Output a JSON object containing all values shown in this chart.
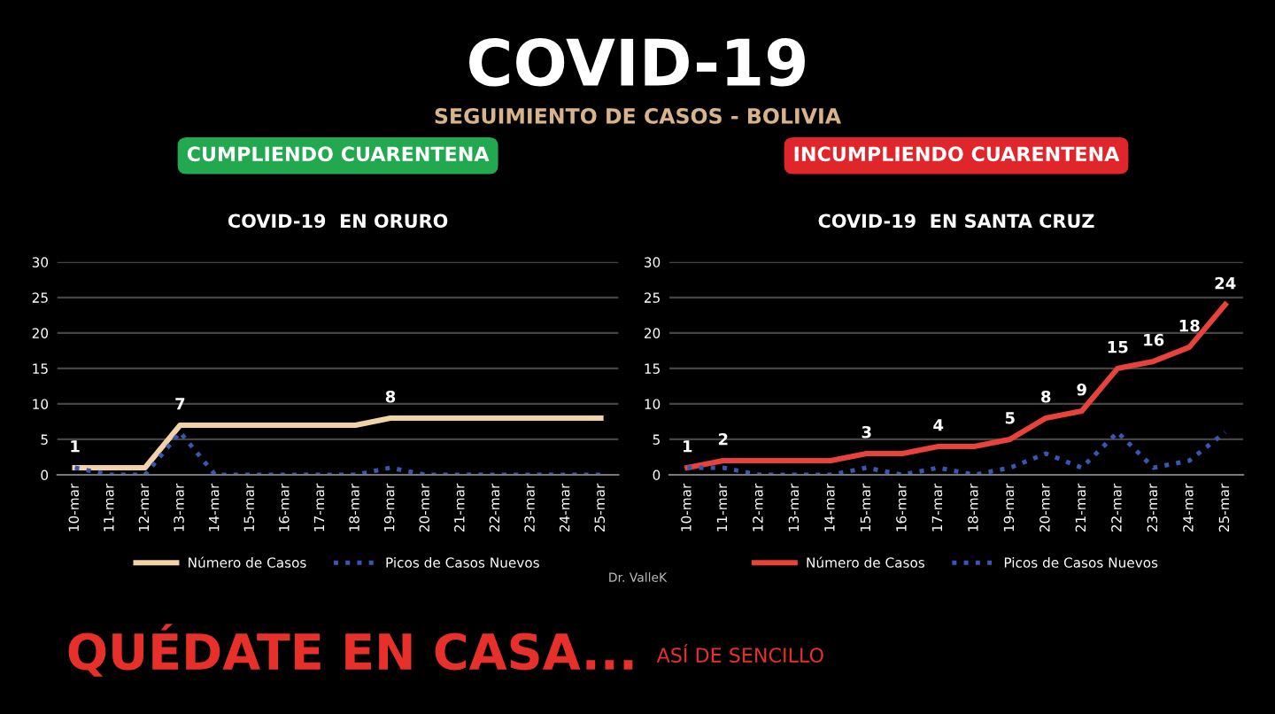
{
  "chart_data": [
    {
      "type": "other",
      "title": "COVID-19",
      "subtitle": "SEGUIMIENTO DE CASOS - BOLIVIA",
      "annotations": [
        "QUÉDATE EN CASA...",
        "ASÍ DE SENCILLO",
        "Dr. ValleK"
      ]
    },
    {
      "type": "line",
      "title": "COVID-19  EN ORURO",
      "annotations": [
        "CUMPLIENDO CUARENTENA"
      ],
      "categories": [
        "10-mar",
        "11-mar",
        "12-mar",
        "13-mar",
        "14-mar",
        "15-mar",
        "16-mar",
        "17-mar",
        "18-mar",
        "19-mar",
        "20-mar",
        "21-mar",
        "22-mar",
        "23-mar",
        "24-mar",
        "25-mar"
      ],
      "series": [
        {
          "name": "Número de Casos",
          "color": "#f2d3a8",
          "line_style": "solid",
          "values": [
            1,
            1,
            1,
            7,
            7,
            7,
            7,
            7,
            7,
            8,
            8,
            8,
            8,
            8,
            8,
            8
          ],
          "value_labels": [
            "1",
            null,
            null,
            "7",
            null,
            null,
            null,
            null,
            null,
            "8",
            null,
            null,
            null,
            null,
            null,
            null
          ]
        },
        {
          "name": "Picos de Casos Nuevos",
          "color": "#3b55b0",
          "line_style": "dotted",
          "values": [
            1,
            0,
            0,
            6,
            0,
            0,
            0,
            0,
            0,
            1,
            0,
            0,
            0,
            0,
            0,
            0
          ]
        }
      ],
      "ylim": [
        0,
        30
      ],
      "yticks": [
        0,
        5,
        10,
        15,
        20,
        25,
        30
      ],
      "grid": "y",
      "legend": "bottom",
      "marker": "none"
    },
    {
      "type": "line",
      "title": "COVID-19  EN SANTA CRUZ",
      "annotations": [
        "INCUMPLIENDO CUARENTENA"
      ],
      "categories": [
        "10-mar",
        "11-mar",
        "12-mar",
        "13-mar",
        "14-mar",
        "15-mar",
        "16-mar",
        "17-mar",
        "18-mar",
        "19-mar",
        "20-mar",
        "21-mar",
        "22-mar",
        "23-mar",
        "24-mar",
        "25-mar"
      ],
      "series": [
        {
          "name": "Número de Casos",
          "color": "#e8433a",
          "line_style": "solid",
          "values": [
            1,
            2,
            2,
            2,
            2,
            3,
            3,
            4,
            4,
            5,
            8,
            9,
            15,
            16,
            18,
            24
          ],
          "value_labels": [
            "1",
            "2",
            null,
            null,
            null,
            "3",
            null,
            "4",
            null,
            "5",
            "8",
            "9",
            "15",
            "16",
            "18",
            "24"
          ]
        },
        {
          "name": "Picos de Casos Nuevos",
          "color": "#3b55b0",
          "line_style": "dotted",
          "values": [
            1,
            1,
            0,
            0,
            0,
            1,
            0,
            1,
            0,
            1,
            3,
            1,
            6,
            1,
            2,
            6
          ]
        }
      ],
      "ylim": [
        0,
        30
      ],
      "yticks": [
        0,
        5,
        10,
        15,
        20,
        25,
        30
      ],
      "grid": "y",
      "legend": "bottom",
      "marker": "none"
    }
  ]
}
